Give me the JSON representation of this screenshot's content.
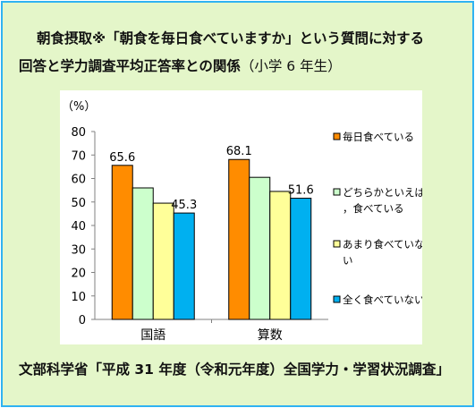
{
  "title": {
    "line1": "朝食摂取※「朝食を毎日食べていますか」という質問に対する",
    "line2": "回答と学力調査平均正答率との関係",
    "line2_paren": "（小学 6 年生）"
  },
  "source": "文部科学省「平成 31 年度（令和元年度）全国学力・学習状況調査」",
  "colors": {
    "frame_bg": "#e4f6c9",
    "frame_border": "#2fb2f2"
  },
  "chart_data": {
    "type": "bar",
    "unit_label": "（%）",
    "ylim": [
      0,
      80
    ],
    "yticks": [
      0,
      10,
      20,
      30,
      40,
      50,
      60,
      70,
      80
    ],
    "categories": [
      "国語",
      "算数"
    ],
    "series": [
      {
        "name": "毎日食べている",
        "color": "#ff8c00",
        "values": [
          65.6,
          68.1
        ],
        "labels": [
          "65.6",
          "68.1"
        ]
      },
      {
        "name": "どちらかといえば，食べている",
        "color": "#ccffcc",
        "values": [
          56.0,
          60.5
        ],
        "labels": [
          "",
          ""
        ]
      },
      {
        "name": "あまり食べていない",
        "color": "#ffff99",
        "values": [
          49.5,
          54.5
        ],
        "labels": [
          "",
          ""
        ]
      },
      {
        "name": "全く食べていない",
        "color": "#00b0f0",
        "values": [
          45.3,
          51.6
        ],
        "labels": [
          "45.3",
          "51.6"
        ]
      }
    ],
    "legend_position": "right",
    "grid": false
  }
}
